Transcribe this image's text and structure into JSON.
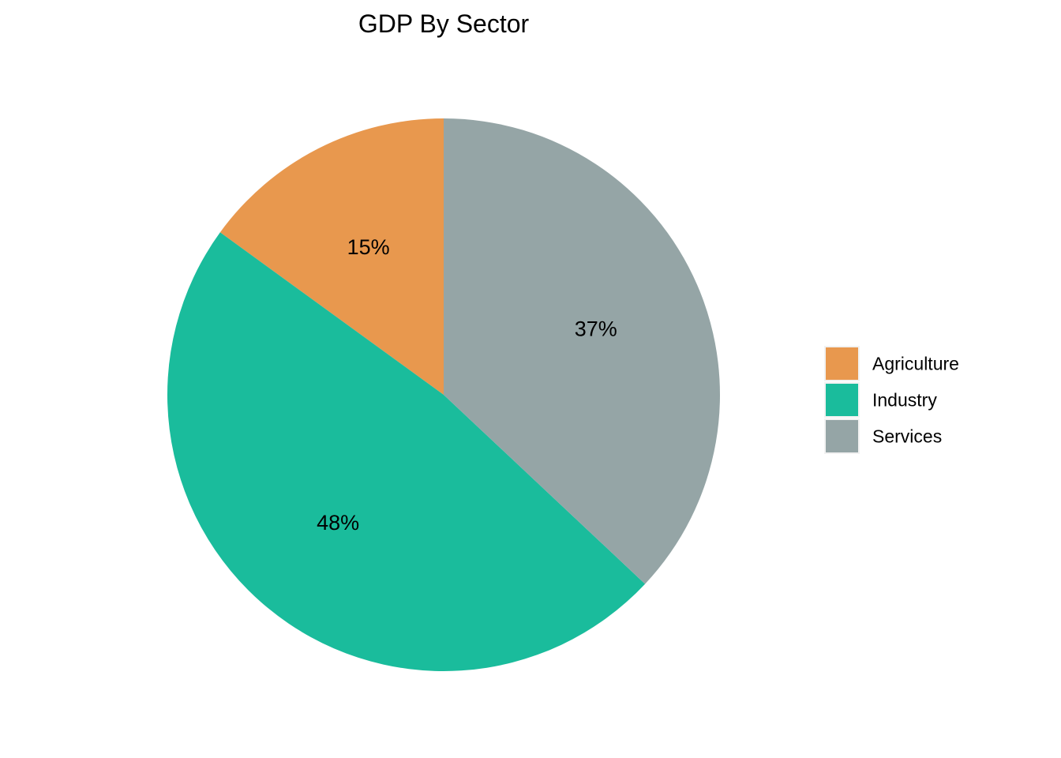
{
  "chart_data": {
    "type": "pie",
    "title": "GDP By Sector",
    "categories": [
      "Agriculture",
      "Industry",
      "Services"
    ],
    "values": [
      15,
      48,
      37
    ],
    "labels": [
      "15%",
      "48%",
      "37%"
    ],
    "colors": [
      "#E8984E",
      "#1ABC9C",
      "#95A5A6"
    ],
    "start_angle_deg": 0,
    "direction": "counterclockwise",
    "legend": {
      "title": "",
      "placement": "right",
      "items": [
        "Agriculture",
        "Industry",
        "Services"
      ]
    }
  }
}
